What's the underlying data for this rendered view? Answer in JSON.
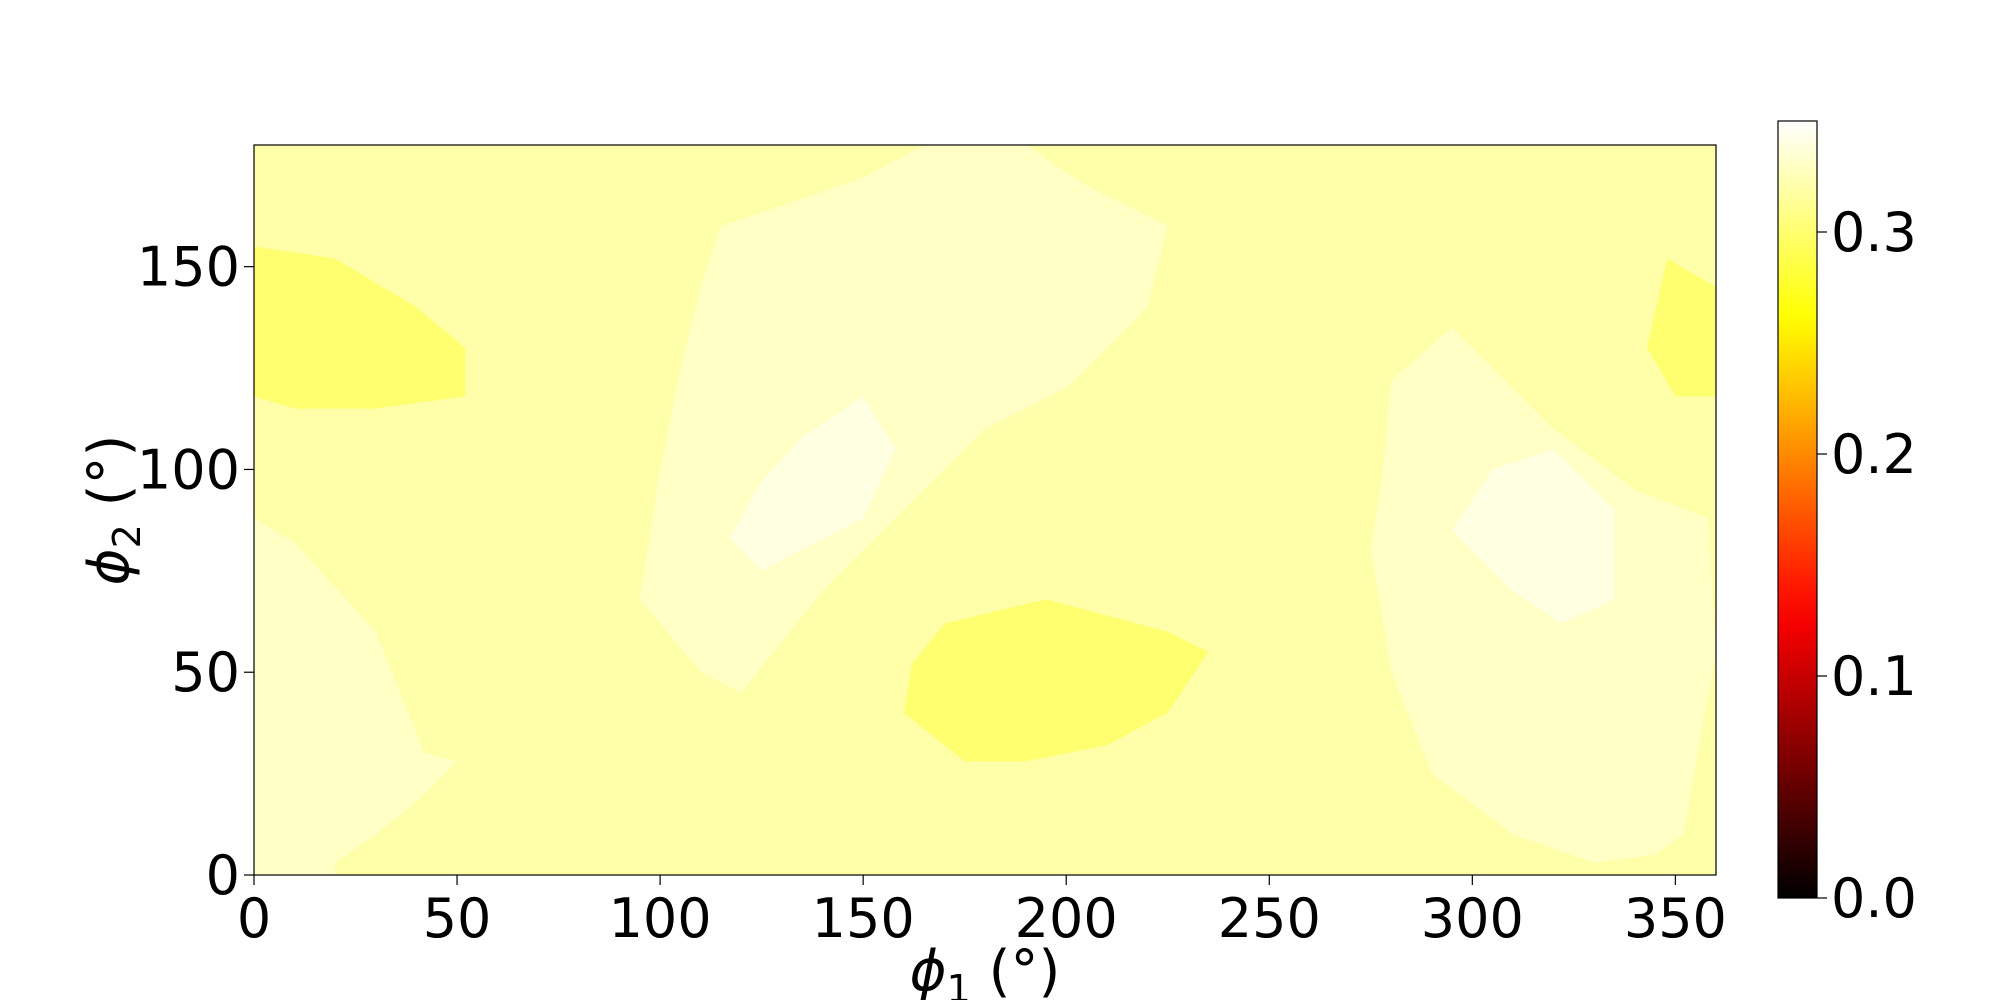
{
  "chart_data": {
    "type": "heatmap",
    "title": "",
    "xlabel": {
      "symbol": "ϕ",
      "sub": "1",
      "unit": " (°)"
    },
    "ylabel": {
      "symbol": "ϕ",
      "sub": "2",
      "unit": " (°)"
    },
    "xlim": [
      0,
      360
    ],
    "ylim": [
      0,
      180
    ],
    "x_ticks": [
      0,
      50,
      100,
      150,
      200,
      250,
      300,
      350
    ],
    "x_tick_labels": [
      "0",
      "50",
      "100",
      "150",
      "200",
      "250",
      "300",
      "350"
    ],
    "y_ticks": [
      0,
      50,
      100,
      150
    ],
    "y_tick_labels": [
      "0",
      "50",
      "100",
      "150"
    ],
    "grid": false,
    "colormap": "hot",
    "colorbar": {
      "range": [
        0,
        0.35
      ],
      "ticks": [
        0,
        0.1,
        0.2,
        0.3
      ],
      "tick_labels": [
        "0.0",
        "0.1",
        "0.2",
        "0.3"
      ]
    },
    "background_level": 0.32,
    "regions": [
      {
        "level": 0.33,
        "points": [
          [
            0,
            88
          ],
          [
            10,
            82
          ],
          [
            30,
            60
          ],
          [
            42,
            30
          ],
          [
            50,
            28
          ],
          [
            40,
            18
          ],
          [
            30,
            10
          ],
          [
            20,
            3
          ],
          [
            20,
            0
          ],
          [
            0,
            0
          ]
        ]
      },
      {
        "level": 0.33,
        "points": [
          [
            110,
            145
          ],
          [
            115,
            160
          ],
          [
            130,
            165
          ],
          [
            150,
            172
          ],
          [
            165,
            180
          ],
          [
            190,
            180
          ],
          [
            205,
            170
          ],
          [
            225,
            160
          ],
          [
            220,
            140
          ],
          [
            200,
            120
          ],
          [
            180,
            110
          ],
          [
            160,
            90
          ],
          [
            140,
            70
          ],
          [
            120,
            45
          ],
          [
            110,
            50
          ],
          [
            95,
            68
          ],
          [
            100,
            100
          ],
          [
            105,
            125
          ]
        ]
      },
      {
        "level": 0.34,
        "points": [
          [
            135,
            108
          ],
          [
            150,
            118
          ],
          [
            158,
            105
          ],
          [
            150,
            88
          ],
          [
            125,
            75
          ],
          [
            117,
            83
          ],
          [
            125,
            97
          ]
        ]
      },
      {
        "level": 0.33,
        "points": [
          [
            280,
            122
          ],
          [
            295,
            135
          ],
          [
            320,
            110
          ],
          [
            340,
            95
          ],
          [
            358,
            88
          ],
          [
            360,
            55
          ],
          [
            352,
            10
          ],
          [
            345,
            5
          ],
          [
            330,
            3
          ],
          [
            310,
            10
          ],
          [
            290,
            25
          ],
          [
            280,
            50
          ],
          [
            275,
            80
          ],
          [
            278,
            100
          ]
        ]
      },
      {
        "level": 0.34,
        "points": [
          [
            305,
            100
          ],
          [
            320,
            105
          ],
          [
            335,
            90
          ],
          [
            335,
            68
          ],
          [
            322,
            62
          ],
          [
            310,
            70
          ],
          [
            295,
            85
          ]
        ]
      },
      {
        "level": 0.3,
        "points": [
          [
            0,
            155
          ],
          [
            20,
            152
          ],
          [
            40,
            140
          ],
          [
            52,
            130
          ],
          [
            52,
            118
          ],
          [
            30,
            115
          ],
          [
            10,
            115
          ],
          [
            0,
            118
          ]
        ]
      },
      {
        "level": 0.3,
        "points": [
          [
            348,
            152
          ],
          [
            360,
            145
          ],
          [
            360,
            118
          ],
          [
            350,
            118
          ],
          [
            343,
            130
          ]
        ]
      },
      {
        "level": 0.3,
        "points": [
          [
            170,
            62
          ],
          [
            195,
            68
          ],
          [
            225,
            60
          ],
          [
            235,
            55
          ],
          [
            225,
            40
          ],
          [
            210,
            32
          ],
          [
            190,
            28
          ],
          [
            175,
            28
          ],
          [
            160,
            40
          ],
          [
            162,
            52
          ]
        ]
      }
    ]
  }
}
